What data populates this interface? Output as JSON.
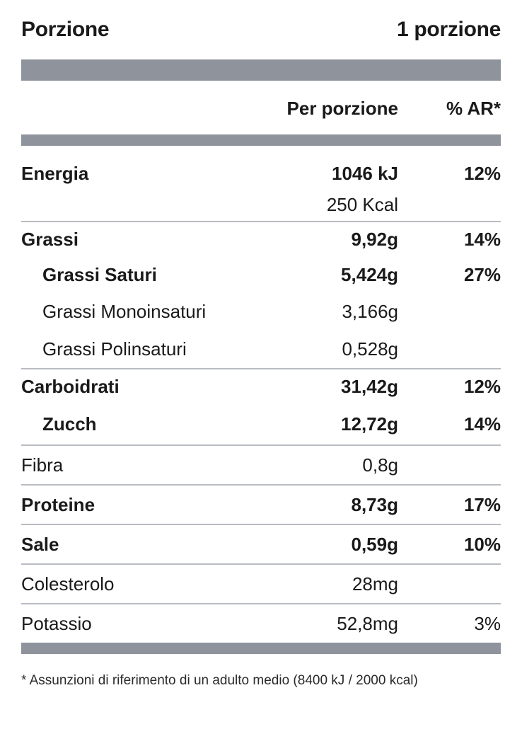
{
  "header": {
    "label": "Porzione",
    "value": "1 porzione"
  },
  "columns": {
    "per_serving": "Per porzione",
    "ar": "% AR*"
  },
  "energy": {
    "name": "Energia",
    "kj": "1046 kJ",
    "kcal": "250 Kcal",
    "pct": "12%"
  },
  "nutrients": [
    {
      "name": "Grassi",
      "amount": "9,92g",
      "pct": "14%"
    },
    {
      "name": "Grassi Saturi",
      "amount": "5,424g",
      "pct": "27%"
    },
    {
      "name": "Grassi Monoinsaturi",
      "amount": "3,166g",
      "pct": ""
    },
    {
      "name": "Grassi Polinsaturi",
      "amount": "0,528g",
      "pct": ""
    },
    {
      "name": "Carboidrati",
      "amount": "31,42g",
      "pct": "12%"
    },
    {
      "name": "Zucch",
      "amount": "12,72g",
      "pct": "14%"
    },
    {
      "name": "Fibra",
      "amount": "0,8g",
      "pct": ""
    },
    {
      "name": "Proteine",
      "amount": "8,73g",
      "pct": "17%"
    },
    {
      "name": "Sale",
      "amount": "0,59g",
      "pct": "10%"
    },
    {
      "name": "Colesterolo",
      "amount": "28mg",
      "pct": ""
    },
    {
      "name": "Potassio",
      "amount": "52,8mg",
      "pct": "3%"
    }
  ],
  "footnote": "* Assunzioni di riferimento di un adulto medio (8400 kJ / 2000 kcal)"
}
